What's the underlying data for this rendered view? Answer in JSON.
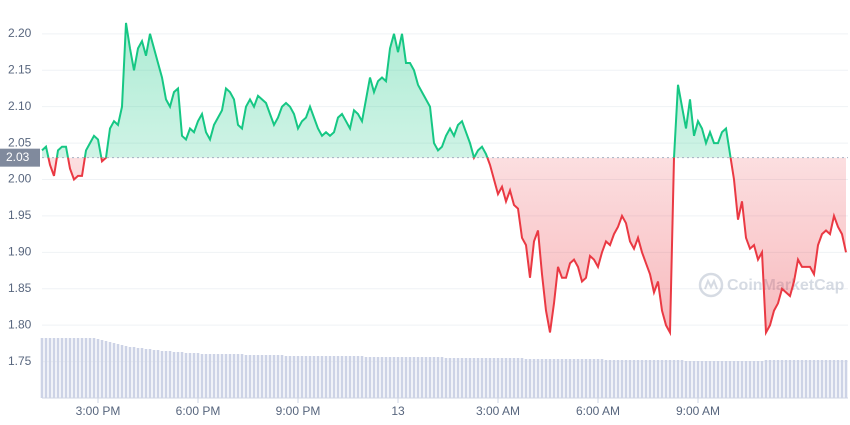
{
  "chart_data": {
    "type": "baseline-line",
    "watermark": "CoinMarketCap",
    "baseline": 2.03,
    "up_color": "#16c784",
    "down_color": "#ea3943",
    "volume_color": "#cdd3e6",
    "grid": true,
    "xlim": [
      13.32,
      37.5
    ],
    "xticks": [
      {
        "value": 15,
        "label": "3:00 PM"
      },
      {
        "value": 18,
        "label": "6:00 PM"
      },
      {
        "value": 21,
        "label": "9:00 PM"
      },
      {
        "value": 24,
        "label": "13"
      },
      {
        "value": 27,
        "label": "3:00 AM"
      },
      {
        "value": 30,
        "label": "6:00 AM"
      },
      {
        "value": 33,
        "label": "9:00 AM"
      }
    ],
    "ylim": [
      1.7,
      2.23
    ],
    "yticks": [
      1.75,
      {
        "value": 1.8,
        "label": "1.80"
      },
      1.85,
      {
        "value": 1.9,
        "label": "1.90"
      },
      1.95,
      {
        "value": 2.0,
        "label": "2.00"
      },
      2.05,
      {
        "value": 2.1,
        "label": "2.10"
      },
      2.15,
      {
        "value": 2.2,
        "label": "2.20"
      }
    ],
    "x": [
      13.32,
      13.44,
      13.56,
      13.68,
      13.8,
      13.92,
      14.04,
      14.16,
      14.28,
      14.4,
      14.52,
      14.64,
      14.76,
      14.88,
      15,
      15.12,
      15.24,
      15.36,
      15.48,
      15.6,
      15.72,
      15.84,
      15.96,
      16.08,
      16.2,
      16.32,
      16.44,
      16.56,
      16.68,
      16.8,
      16.92,
      17.04,
      17.16,
      17.28,
      17.4,
      17.52,
      17.64,
      17.76,
      17.88,
      18,
      18.12,
      18.24,
      18.36,
      18.48,
      18.6,
      18.72,
      18.84,
      18.96,
      19.08,
      19.2,
      19.32,
      19.44,
      19.56,
      19.68,
      19.8,
      19.92,
      20.04,
      20.16,
      20.28,
      20.4,
      20.52,
      20.64,
      20.76,
      20.88,
      21,
      21.12,
      21.24,
      21.36,
      21.48,
      21.6,
      21.72,
      21.84,
      21.96,
      22.08,
      22.2,
      22.32,
      22.44,
      22.56,
      22.68,
      22.8,
      22.92,
      23.04,
      23.16,
      23.28,
      23.4,
      23.52,
      23.64,
      23.76,
      23.88,
      24,
      24.12,
      24.24,
      24.36,
      24.48,
      24.6,
      24.72,
      24.84,
      24.96,
      25.08,
      25.2,
      25.32,
      25.44,
      25.56,
      25.68,
      25.8,
      25.92,
      26.04,
      26.16,
      26.28,
      26.4,
      26.52,
      26.64,
      26.76,
      26.88,
      27,
      27.12,
      27.24,
      27.36,
      27.48,
      27.6,
      27.72,
      27.84,
      27.96,
      28.08,
      28.2,
      28.32,
      28.44,
      28.56,
      28.68,
      28.8,
      28.92,
      29.04,
      29.16,
      29.28,
      29.4,
      29.52,
      29.64,
      29.76,
      29.88,
      30,
      30.12,
      30.24,
      30.36,
      30.48,
      30.6,
      30.72,
      30.84,
      30.96,
      31.08,
      31.2,
      31.32,
      31.44,
      31.56,
      31.68,
      31.8,
      31.92,
      32.04,
      32.16,
      32.28,
      32.4,
      32.52,
      32.64,
      32.76,
      32.88,
      33,
      33.12,
      33.24,
      33.36,
      33.48,
      33.6,
      33.72,
      33.84,
      33.96,
      34.08,
      34.2,
      34.32,
      34.44,
      34.56,
      34.68,
      34.8,
      34.92,
      35.04,
      35.16,
      35.28,
      35.4,
      35.52,
      35.64,
      35.76,
      35.88,
      36,
      36.12,
      36.24,
      36.36,
      36.48,
      36.6,
      36.72,
      36.84,
      36.96,
      37.08,
      37.2,
      37.32,
      37.44
    ],
    "series": [
      {
        "values": [
          2.04,
          2.045,
          2.02,
          2.005,
          2.04,
          2.045,
          2.045,
          2.015,
          2.0,
          2.005,
          2.005,
          2.04,
          2.05,
          2.06,
          2.055,
          2.025,
          2.03,
          2.07,
          2.08,
          2.075,
          2.1,
          2.215,
          2.18,
          2.15,
          2.18,
          2.19,
          2.17,
          2.2,
          2.18,
          2.16,
          2.14,
          2.11,
          2.1,
          2.12,
          2.125,
          2.06,
          2.055,
          2.07,
          2.065,
          2.08,
          2.09,
          2.065,
          2.055,
          2.075,
          2.085,
          2.095,
          2.125,
          2.12,
          2.11,
          2.075,
          2.07,
          2.1,
          2.11,
          2.1,
          2.115,
          2.11,
          2.105,
          2.09,
          2.075,
          2.085,
          2.1,
          2.105,
          2.1,
          2.09,
          2.07,
          2.08,
          2.085,
          2.1,
          2.085,
          2.07,
          2.06,
          2.065,
          2.06,
          2.065,
          2.085,
          2.09,
          2.08,
          2.07,
          2.095,
          2.09,
          2.08,
          2.11,
          2.14,
          2.12,
          2.135,
          2.14,
          2.135,
          2.18,
          2.2,
          2.175,
          2.2,
          2.16,
          2.16,
          2.15,
          2.13,
          2.12,
          2.11,
          2.1,
          2.05,
          2.04,
          2.045,
          2.06,
          2.07,
          2.06,
          2.075,
          2.08,
          2.065,
          2.05,
          2.03,
          2.04,
          2.045,
          2.035,
          2.02,
          2.0,
          1.98,
          1.99,
          1.97,
          1.985,
          1.965,
          1.96,
          1.92,
          1.91,
          1.865,
          1.915,
          1.93,
          1.87,
          1.82,
          1.79,
          1.83,
          1.88,
          1.865,
          1.865,
          1.885,
          1.89,
          1.88,
          1.86,
          1.865,
          1.895,
          1.89,
          1.88,
          1.9,
          1.915,
          1.91,
          1.925,
          1.935,
          1.95,
          1.94,
          1.915,
          1.905,
          1.92,
          1.9,
          1.885,
          1.87,
          1.845,
          1.86,
          1.82,
          1.8,
          1.79,
          2.03,
          2.13,
          2.1,
          2.07,
          2.11,
          2.06,
          2.08,
          2.07,
          2.05,
          2.065,
          2.05,
          2.05,
          2.065,
          2.07,
          2.035,
          2.0,
          1.945,
          1.97,
          1.92,
          1.905,
          1.91,
          1.89,
          1.9,
          1.79,
          1.8,
          1.82,
          1.83,
          1.85,
          1.845,
          1.84,
          1.86,
          1.89,
          1.88,
          1.88,
          1.88,
          1.87,
          1.91,
          1.925,
          1.93,
          1.925,
          1.95,
          1.935,
          1.925,
          1.9
        ]
      }
    ],
    "volume": [
      60,
      60,
      60,
      60,
      60,
      60,
      60,
      60,
      60,
      60,
      60,
      60,
      60,
      60,
      59,
      58,
      57,
      56,
      55,
      54,
      53,
      52,
      51,
      51,
      50,
      50,
      49,
      49,
      48,
      48,
      47,
      47,
      47,
      46,
      46,
      46,
      45,
      45,
      45,
      45,
      44,
      44,
      44,
      44,
      44,
      44,
      44,
      44,
      44,
      44,
      44,
      43,
      43,
      43,
      43,
      43,
      43,
      43,
      43,
      43,
      43,
      42,
      42,
      42,
      42,
      42,
      42,
      42,
      42,
      42,
      42,
      42,
      42,
      42,
      42,
      42,
      42,
      42,
      42,
      42,
      42,
      41,
      41,
      41,
      41,
      41,
      41,
      41,
      41,
      41,
      41,
      41,
      41,
      41,
      41,
      41,
      41,
      41,
      41,
      41,
      41,
      40,
      40,
      40,
      40,
      40,
      40,
      40,
      40,
      40,
      40,
      40,
      40,
      40,
      40,
      40,
      40,
      40,
      40,
      40,
      40,
      39,
      39,
      39,
      39,
      39,
      39,
      39,
      39,
      39,
      39,
      39,
      39,
      39,
      39,
      39,
      39,
      39,
      39,
      39,
      39,
      38,
      38,
      38,
      38,
      38,
      38,
      38,
      38,
      38,
      38,
      38,
      38,
      38,
      38,
      38,
      38,
      38,
      38,
      38,
      38,
      37,
      37,
      37,
      37,
      37,
      37,
      37,
      37,
      37,
      37,
      37,
      37,
      37,
      37,
      37,
      37,
      37,
      37,
      37,
      37,
      38,
      38,
      38,
      38,
      38,
      38,
      38,
      38,
      38,
      38,
      38,
      38,
      38,
      38,
      38,
      38,
      38,
      38,
      38,
      38,
      38
    ]
  }
}
